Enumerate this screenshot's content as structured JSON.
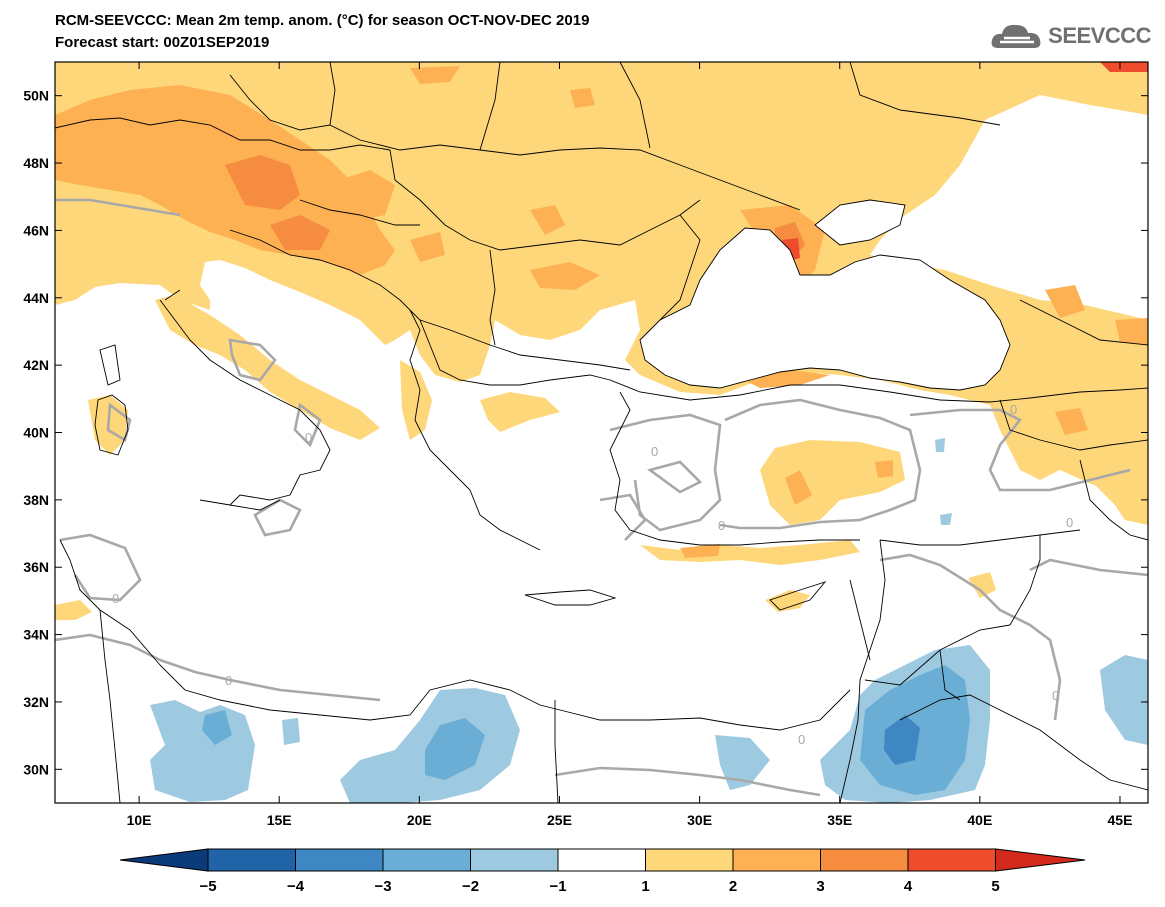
{
  "header": {
    "title_line1": "RCM-SEEVCCC: Mean 2m temp. anom. (°C) for season OCT-NOV-DEC 2019",
    "title_line2": "Forecast start: 00Z01SEP2019",
    "logo_text": "SEEVCCC"
  },
  "map": {
    "lon_range": [
      7,
      46
    ],
    "lat_range": [
      29,
      51
    ],
    "lat_ticks": [
      "30N",
      "32N",
      "34N",
      "36N",
      "38N",
      "40N",
      "42N",
      "44N",
      "46N",
      "48N",
      "50N"
    ],
    "lat_tick_values": [
      30,
      32,
      34,
      36,
      38,
      40,
      42,
      44,
      46,
      48,
      50
    ],
    "lon_ticks": [
      "10E",
      "15E",
      "20E",
      "25E",
      "30E",
      "35E",
      "40E",
      "45E"
    ],
    "lon_tick_values": [
      10,
      15,
      20,
      25,
      30,
      35,
      40,
      45
    ],
    "contour_label": "0",
    "colors": {
      "anomaly_1_2": "#fed77a",
      "anomaly_2_3": "#fdb152",
      "anomaly_3_4": "#f58c3f",
      "anomaly_4_5": "#ef4c2d",
      "anomaly_m1_m2": "#9ecae1",
      "anomaly_m2_m3": "#6aadd5",
      "anomaly_m3_m4": "#3f87c2",
      "zero_contour": "#a8a8a8",
      "borders": "#000000"
    }
  },
  "colorbar": {
    "labels": [
      "−5",
      "−4",
      "−3",
      "−2",
      "−1",
      "1",
      "2",
      "3",
      "4",
      "5"
    ],
    "colors": [
      "#2064a7",
      "#3f87c2",
      "#6aadd5",
      "#9ecae1",
      "#ffffff",
      "#fed77a",
      "#fdb152",
      "#f58c3f",
      "#ef4c2d"
    ],
    "low_extend_color": "#0b3a7a",
    "high_extend_color": "#d42a1e"
  }
}
